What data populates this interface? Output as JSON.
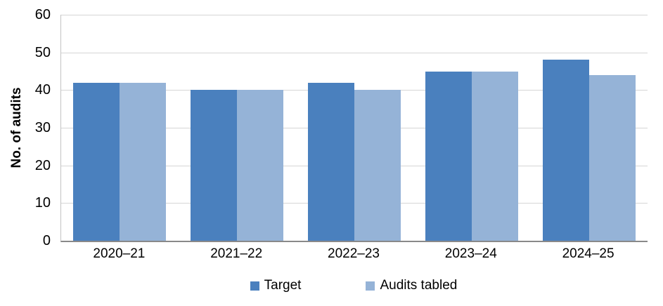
{
  "chart_data": {
    "type": "bar",
    "title": "",
    "categories": [
      "2020–21",
      "2021–22",
      "2022–23",
      "2023–24",
      "2024–25"
    ],
    "series": [
      {
        "name": "Target",
        "color": "#4A80BE",
        "values": [
          42,
          40,
          42,
          45,
          48
        ]
      },
      {
        "name": "Audits tabled",
        "color": "#95B3D7",
        "values": [
          42,
          40,
          40,
          45,
          44
        ]
      }
    ],
    "xlabel": "",
    "ylabel": "No. of audits",
    "ylim": [
      0,
      60
    ],
    "yticks": [
      0,
      10,
      20,
      30,
      40,
      50,
      60
    ],
    "grid": true,
    "legend_position": "bottom"
  },
  "colors": {
    "gridline": "#d6d6d6",
    "axis_left": "#c3c3c3",
    "axis_bottom": "#898989",
    "text": "#000000",
    "background": "#ffffff"
  }
}
